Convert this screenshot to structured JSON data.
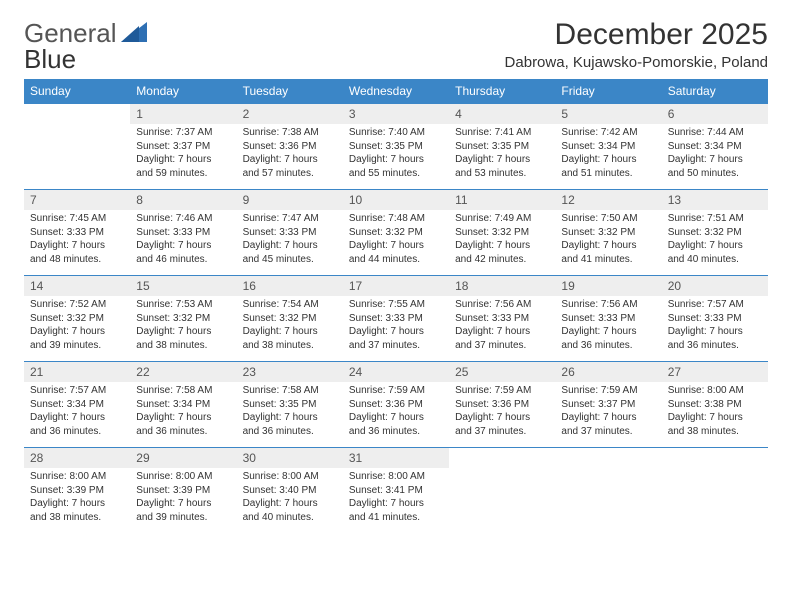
{
  "brand": {
    "part1": "General",
    "part2": "Blue"
  },
  "title": "December 2025",
  "location": "Dabrowa, Kujawsko-Pomorskie, Poland",
  "colors": {
    "header_bg": "#3b86c7",
    "header_fg": "#ffffff",
    "daynum_bg": "#eeeeee",
    "row_divider": "#3b86c7",
    "text": "#333333"
  },
  "weekdays": [
    "Sunday",
    "Monday",
    "Tuesday",
    "Wednesday",
    "Thursday",
    "Friday",
    "Saturday"
  ],
  "weeks": [
    [
      null,
      {
        "n": "1",
        "sr": "7:37 AM",
        "ss": "3:37 PM",
        "dl": "7 hours and 59 minutes."
      },
      {
        "n": "2",
        "sr": "7:38 AM",
        "ss": "3:36 PM",
        "dl": "7 hours and 57 minutes."
      },
      {
        "n": "3",
        "sr": "7:40 AM",
        "ss": "3:35 PM",
        "dl": "7 hours and 55 minutes."
      },
      {
        "n": "4",
        "sr": "7:41 AM",
        "ss": "3:35 PM",
        "dl": "7 hours and 53 minutes."
      },
      {
        "n": "5",
        "sr": "7:42 AM",
        "ss": "3:34 PM",
        "dl": "7 hours and 51 minutes."
      },
      {
        "n": "6",
        "sr": "7:44 AM",
        "ss": "3:34 PM",
        "dl": "7 hours and 50 minutes."
      }
    ],
    [
      {
        "n": "7",
        "sr": "7:45 AM",
        "ss": "3:33 PM",
        "dl": "7 hours and 48 minutes."
      },
      {
        "n": "8",
        "sr": "7:46 AM",
        "ss": "3:33 PM",
        "dl": "7 hours and 46 minutes."
      },
      {
        "n": "9",
        "sr": "7:47 AM",
        "ss": "3:33 PM",
        "dl": "7 hours and 45 minutes."
      },
      {
        "n": "10",
        "sr": "7:48 AM",
        "ss": "3:32 PM",
        "dl": "7 hours and 44 minutes."
      },
      {
        "n": "11",
        "sr": "7:49 AM",
        "ss": "3:32 PM",
        "dl": "7 hours and 42 minutes."
      },
      {
        "n": "12",
        "sr": "7:50 AM",
        "ss": "3:32 PM",
        "dl": "7 hours and 41 minutes."
      },
      {
        "n": "13",
        "sr": "7:51 AM",
        "ss": "3:32 PM",
        "dl": "7 hours and 40 minutes."
      }
    ],
    [
      {
        "n": "14",
        "sr": "7:52 AM",
        "ss": "3:32 PM",
        "dl": "7 hours and 39 minutes."
      },
      {
        "n": "15",
        "sr": "7:53 AM",
        "ss": "3:32 PM",
        "dl": "7 hours and 38 minutes."
      },
      {
        "n": "16",
        "sr": "7:54 AM",
        "ss": "3:32 PM",
        "dl": "7 hours and 38 minutes."
      },
      {
        "n": "17",
        "sr": "7:55 AM",
        "ss": "3:33 PM",
        "dl": "7 hours and 37 minutes."
      },
      {
        "n": "18",
        "sr": "7:56 AM",
        "ss": "3:33 PM",
        "dl": "7 hours and 37 minutes."
      },
      {
        "n": "19",
        "sr": "7:56 AM",
        "ss": "3:33 PM",
        "dl": "7 hours and 36 minutes."
      },
      {
        "n": "20",
        "sr": "7:57 AM",
        "ss": "3:33 PM",
        "dl": "7 hours and 36 minutes."
      }
    ],
    [
      {
        "n": "21",
        "sr": "7:57 AM",
        "ss": "3:34 PM",
        "dl": "7 hours and 36 minutes."
      },
      {
        "n": "22",
        "sr": "7:58 AM",
        "ss": "3:34 PM",
        "dl": "7 hours and 36 minutes."
      },
      {
        "n": "23",
        "sr": "7:58 AM",
        "ss": "3:35 PM",
        "dl": "7 hours and 36 minutes."
      },
      {
        "n": "24",
        "sr": "7:59 AM",
        "ss": "3:36 PM",
        "dl": "7 hours and 36 minutes."
      },
      {
        "n": "25",
        "sr": "7:59 AM",
        "ss": "3:36 PM",
        "dl": "7 hours and 37 minutes."
      },
      {
        "n": "26",
        "sr": "7:59 AM",
        "ss": "3:37 PM",
        "dl": "7 hours and 37 minutes."
      },
      {
        "n": "27",
        "sr": "8:00 AM",
        "ss": "3:38 PM",
        "dl": "7 hours and 38 minutes."
      }
    ],
    [
      {
        "n": "28",
        "sr": "8:00 AM",
        "ss": "3:39 PM",
        "dl": "7 hours and 38 minutes."
      },
      {
        "n": "29",
        "sr": "8:00 AM",
        "ss": "3:39 PM",
        "dl": "7 hours and 39 minutes."
      },
      {
        "n": "30",
        "sr": "8:00 AM",
        "ss": "3:40 PM",
        "dl": "7 hours and 40 minutes."
      },
      {
        "n": "31",
        "sr": "8:00 AM",
        "ss": "3:41 PM",
        "dl": "7 hours and 41 minutes."
      },
      null,
      null,
      null
    ]
  ],
  "labels": {
    "sunrise": "Sunrise:",
    "sunset": "Sunset:",
    "daylight": "Daylight:"
  }
}
